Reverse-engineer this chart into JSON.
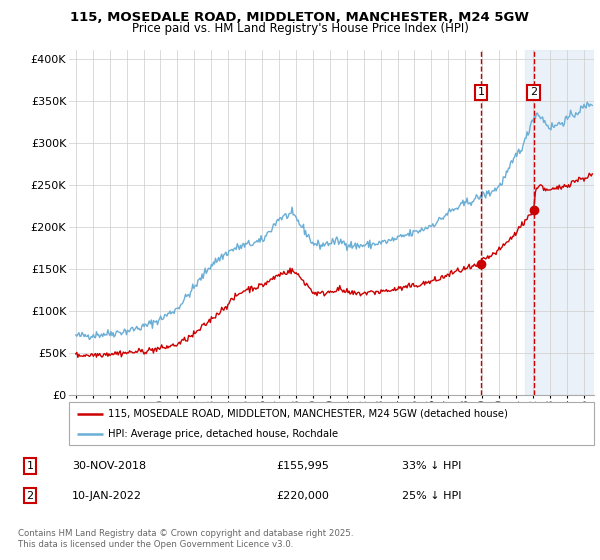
{
  "title1": "115, MOSEDALE ROAD, MIDDLETON, MANCHESTER, M24 5GW",
  "title2": "Price paid vs. HM Land Registry's House Price Index (HPI)",
  "property_label": "115, MOSEDALE ROAD, MIDDLETON, MANCHESTER, M24 5GW (detached house)",
  "hpi_label": "HPI: Average price, detached house, Rochdale",
  "annotation1": {
    "num": "1",
    "date": "30-NOV-2018",
    "price": "£155,995",
    "pct": "33% ↓ HPI"
  },
  "annotation2": {
    "num": "2",
    "date": "10-JAN-2022",
    "price": "£220,000",
    "pct": "25% ↓ HPI"
  },
  "footer": "Contains HM Land Registry data © Crown copyright and database right 2025.\nThis data is licensed under the Open Government Licence v3.0.",
  "ylim": [
    0,
    410000
  ],
  "yticks": [
    0,
    50000,
    100000,
    150000,
    200000,
    250000,
    300000,
    350000,
    400000
  ],
  "ytick_labels": [
    "£0",
    "£50K",
    "£100K",
    "£150K",
    "£200K",
    "£250K",
    "£300K",
    "£350K",
    "£400K"
  ],
  "hpi_color": "#6aaed6",
  "property_color": "#cc0000",
  "sale1_x": 2018.92,
  "sale1_y": 155995,
  "sale2_x": 2022.03,
  "sale2_y": 220000,
  "bg_shade_x1": 2021.5,
  "bg_shade_x2": 2025.5,
  "xlim_left": 1994.6,
  "xlim_right": 2025.6
}
